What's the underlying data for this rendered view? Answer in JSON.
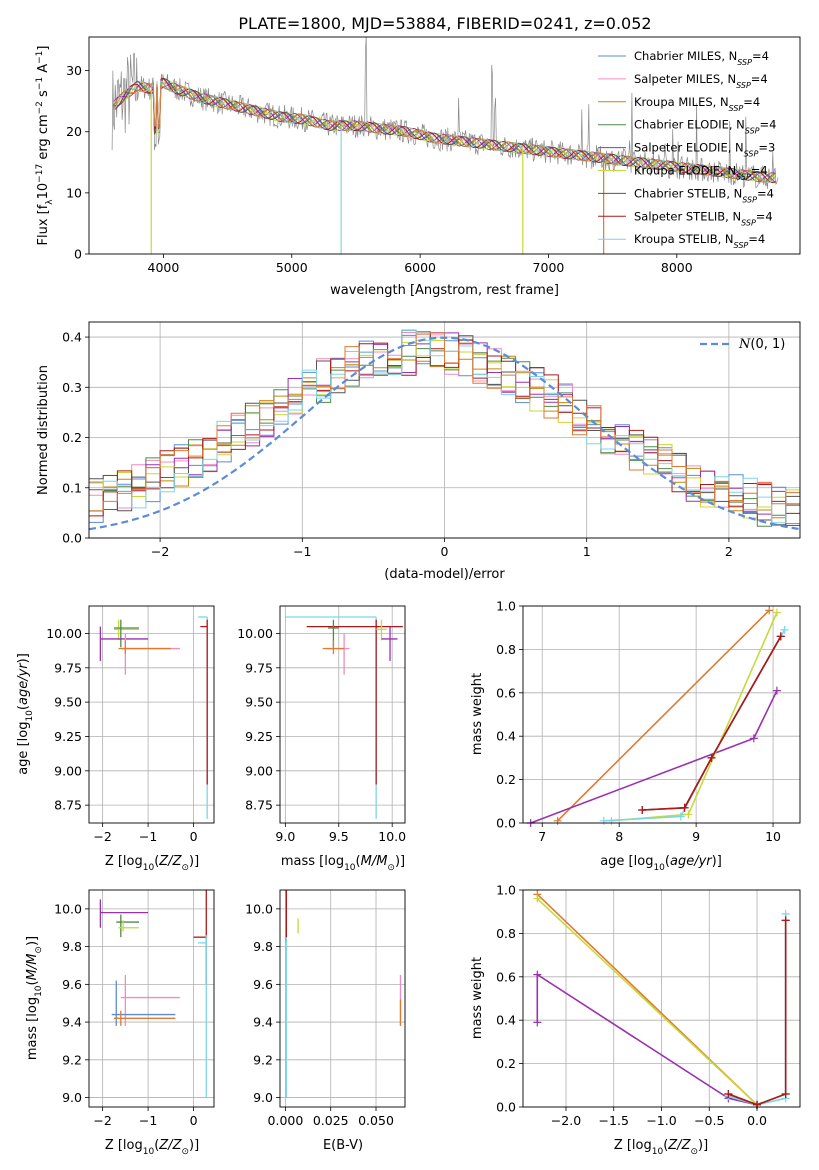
{
  "figure_title": "PLATE=1800, MJD=53884, FIBERID=0241, z=0.052",
  "colors": {
    "chabrier_miles": "#5b8bd9",
    "salpeter_miles": "#f08cc0",
    "kroupa_miles": "#c8860a",
    "chabrier_elodie": "#4d8a4d",
    "salpeter_elodie": "#9b30b0",
    "kroupa_elodie": "#c8d83a",
    "chabrier_stelib": "#555555",
    "salpeter_stelib": "#b01818",
    "kroupa_stelib": "#7dd6e6",
    "orange": "#e07a30",
    "gaussian": "#5b8bd9"
  },
  "chart_data": [
    {
      "id": "spectrum",
      "type": "line",
      "title": "PLATE=1800, MJD=53884, FIBERID=0241, z=0.052",
      "xlabel": "wavelength [Angstrom, rest frame]",
      "ylabel_parts": [
        "Flux [f",
        "λ",
        "10",
        "−17",
        " erg cm",
        "−2",
        " s",
        "−1",
        " A",
        "−1",
        "]"
      ],
      "xlim": [
        3420,
        8960
      ],
      "ylim": [
        0,
        35.5
      ],
      "xticks": [
        4000,
        5000,
        6000,
        7000,
        8000
      ],
      "yticks": [
        0,
        10,
        20,
        30
      ],
      "legend_position": "top-right",
      "legend": [
        {
          "label": "Chabrier MILES, N",
          "n": "4",
          "color": "#5b8bd9"
        },
        {
          "label": "Salpeter MILES, N",
          "n": "4",
          "color": "#f08cc0"
        },
        {
          "label": "Kroupa MILES, N",
          "n": "4",
          "color": "#c8860a"
        },
        {
          "label": "Chabrier ELODIE, N",
          "n": "4",
          "color": "#4d8a4d"
        },
        {
          "label": "Salpeter ELODIE, N",
          "n": "3",
          "color": "#9b30b0"
        },
        {
          "label": "Kroupa ELODIE, N",
          "n": "4",
          "color": "#c8d83a"
        },
        {
          "label": "Chabrier STELIB, N",
          "n": "4",
          "color": "#555555"
        },
        {
          "label": "Salpeter STELIB, N",
          "n": "4",
          "color": "#b01818"
        },
        {
          "label": "Kroupa STELIB, N",
          "n": "4",
          "color": "#7dd6e6"
        }
      ],
      "legend_sub": "SSP",
      "continuum": [
        [
          3600,
          24
        ],
        [
          3700,
          26
        ],
        [
          3800,
          27.5
        ],
        [
          3900,
          27
        ],
        [
          4000,
          28
        ],
        [
          4100,
          27
        ],
        [
          4300,
          25.5
        ],
        [
          4500,
          24.5
        ],
        [
          4700,
          23.5
        ],
        [
          4900,
          22.5
        ],
        [
          5100,
          22
        ],
        [
          5300,
          21
        ],
        [
          5500,
          21
        ],
        [
          5700,
          20.5
        ],
        [
          5900,
          20
        ],
        [
          6100,
          19
        ],
        [
          6300,
          18.5
        ],
        [
          6500,
          18
        ],
        [
          6700,
          17.5
        ],
        [
          6900,
          17
        ],
        [
          7100,
          16.5
        ],
        [
          7300,
          16
        ],
        [
          7500,
          15.5
        ],
        [
          7700,
          15
        ],
        [
          7900,
          14.5
        ],
        [
          8100,
          14
        ],
        [
          8300,
          13.5
        ],
        [
          8500,
          13
        ],
        [
          8700,
          12.5
        ]
      ],
      "model_drops": [
        {
          "x": 3905,
          "color": "#c8d83a"
        },
        {
          "x": 5385,
          "color": "#7dd6e6"
        },
        {
          "x": 6800,
          "color": "#c8d83a"
        },
        {
          "x": 7430,
          "color": "#e07a30"
        }
      ]
    },
    {
      "id": "residuals",
      "type": "line",
      "xlabel": "(data-model)/error",
      "ylabel": "Normed distribution",
      "xlim": [
        -2.5,
        2.5
      ],
      "ylim": [
        0,
        0.43
      ],
      "xticks": [
        -2,
        -1,
        0,
        1,
        2
      ],
      "yticks": [
        0.0,
        0.1,
        0.2,
        0.3,
        0.4
      ],
      "grid": true,
      "gaussian_label": "N(0, 1)",
      "legend_position": "top-right",
      "histogram_bins": 50,
      "series_colors": [
        "#5b8bd9",
        "#f08cc0",
        "#c8860a",
        "#4d8a4d",
        "#9b30b0",
        "#c8d83a",
        "#555555",
        "#b01818",
        "#7dd6e6",
        "#e07a30"
      ]
    },
    {
      "id": "age_vs_Z",
      "type": "scatter",
      "xlabel": "Z [log10(Z/Z⊙)]",
      "ylabel": "age  [log10(age/yr)]",
      "xlim": [
        -2.3,
        0.45
      ],
      "ylim": [
        8.62,
        10.2
      ],
      "xticks": [
        -2,
        -1,
        0
      ],
      "yticks": [
        8.75,
        9.0,
        9.25,
        9.5,
        9.75,
        10.0
      ],
      "grid": true,
      "errorbars": [
        {
          "x": 0.3,
          "xlo": 0.1,
          "xhi": 0.3,
          "y": 10.12,
          "ylo": 8.65,
          "yhi": 10.12,
          "color": "#7dd6e6"
        },
        {
          "x": 0.3,
          "xlo": 0.15,
          "xhi": 0.3,
          "y": 10.05,
          "ylo": 8.9,
          "yhi": 10.1,
          "color": "#b01818"
        },
        {
          "x": -1.65,
          "xlo": -1.75,
          "xhi": -1.2,
          "y": 10.03,
          "ylo": 9.95,
          "yhi": 10.1,
          "color": "#c8d83a"
        },
        {
          "x": -1.6,
          "xlo": -1.75,
          "xhi": -1.2,
          "y": 10.04,
          "ylo": 9.9,
          "yhi": 10.1,
          "color": "#4d8a4d"
        },
        {
          "x": -2.05,
          "xlo": -2.05,
          "xhi": -1.0,
          "y": 9.96,
          "ylo": 9.8,
          "yhi": 10.05,
          "color": "#9b30b0"
        },
        {
          "x": -1.5,
          "xlo": -1.6,
          "xhi": -0.3,
          "y": 9.89,
          "ylo": 9.7,
          "yhi": 10.0,
          "color": "#f08cc0"
        },
        {
          "x": -1.5,
          "xlo": -1.65,
          "xhi": -0.5,
          "y": 9.89,
          "ylo": 9.85,
          "yhi": 9.95,
          "color": "#e07a30"
        }
      ]
    },
    {
      "id": "age_vs_mass",
      "type": "scatter",
      "xlabel": "mass [log10(M/M⊙)]",
      "xlim": [
        8.95,
        10.12
      ],
      "ylim": [
        8.62,
        10.2
      ],
      "xticks": [
        9.0,
        9.5,
        10.0
      ],
      "yticks": [
        8.75,
        9.0,
        9.25,
        9.5,
        9.75,
        10.0
      ],
      "grid": true,
      "errorbars": [
        {
          "x": 9.85,
          "xlo": 9.0,
          "xhi": 9.85,
          "y": 10.12,
          "ylo": 8.65,
          "yhi": 10.12,
          "color": "#7dd6e6"
        },
        {
          "x": 9.85,
          "xlo": 9.2,
          "xhi": 10.1,
          "y": 10.05,
          "ylo": 8.9,
          "yhi": 10.1,
          "color": "#b01818"
        },
        {
          "x": 9.9,
          "xlo": 9.85,
          "xhi": 9.95,
          "y": 10.03,
          "ylo": 9.95,
          "yhi": 10.1,
          "color": "#c8d83a"
        },
        {
          "x": 9.45,
          "xlo": 9.4,
          "xhi": 9.5,
          "y": 10.04,
          "ylo": 9.9,
          "yhi": 10.1,
          "color": "#4d8a4d"
        },
        {
          "x": 9.98,
          "xlo": 9.9,
          "xhi": 10.05,
          "y": 9.96,
          "ylo": 9.8,
          "yhi": 10.05,
          "color": "#9b30b0"
        },
        {
          "x": 9.55,
          "xlo": 9.5,
          "xhi": 9.6,
          "y": 9.89,
          "ylo": 9.7,
          "yhi": 10.0,
          "color": "#f08cc0"
        },
        {
          "x": 9.45,
          "xlo": 9.35,
          "xhi": 9.55,
          "y": 9.89,
          "ylo": 9.85,
          "yhi": 9.95,
          "color": "#e07a30"
        }
      ]
    },
    {
      "id": "weight_vs_age",
      "type": "line",
      "xlabel": "age  [log10(age/yr)]",
      "ylabel": "mass weight",
      "xlim": [
        6.75,
        10.35
      ],
      "ylim": [
        0,
        1.0
      ],
      "xticks": [
        7,
        8,
        9,
        10
      ],
      "yticks": [
        0.0,
        0.2,
        0.4,
        0.6,
        0.8,
        1.0
      ],
      "grid": true,
      "series": [
        {
          "color": "#e07a30",
          "x": [
            7.2,
            9.95
          ],
          "y": [
            0.01,
            0.98
          ]
        },
        {
          "color": "#9b30b0",
          "x": [
            6.85,
            9.75,
            10.05
          ],
          "y": [
            0.0,
            0.39,
            0.61
          ]
        },
        {
          "color": "#c8d83a",
          "x": [
            7.9,
            8.9,
            10.05
          ],
          "y": [
            0.01,
            0.04,
            0.97
          ]
        },
        {
          "color": "#7dd6e6",
          "x": [
            7.8,
            8.8,
            9.2,
            10.15
          ],
          "y": [
            0.01,
            0.03,
            0.3,
            0.89
          ]
        },
        {
          "color": "#555555",
          "x": [
            8.3,
            8.85,
            9.2,
            10.1
          ],
          "y": [
            0.06,
            0.07,
            0.3,
            0.86
          ]
        },
        {
          "color": "#b01818",
          "x": [
            8.3,
            8.85,
            9.2,
            10.1
          ],
          "y": [
            0.06,
            0.07,
            0.3,
            0.86
          ]
        }
      ]
    },
    {
      "id": "mass_vs_Z",
      "type": "scatter",
      "xlabel": "Z [log10(Z/Z⊙)]",
      "ylabel": "mass [log10(M/M⊙)]",
      "xlim": [
        -2.3,
        0.45
      ],
      "ylim": [
        8.95,
        10.1
      ],
      "xticks": [
        -2,
        -1,
        0
      ],
      "yticks": [
        9.0,
        9.2,
        9.4,
        9.6,
        9.8,
        10.0
      ],
      "grid": true,
      "errorbars": [
        {
          "x": -2.05,
          "xlo": -2.05,
          "xhi": -1.0,
          "y": 9.98,
          "ylo": 9.9,
          "yhi": 10.05,
          "color": "#9b30b0"
        },
        {
          "x": -1.6,
          "xlo": -1.7,
          "xhi": -1.2,
          "y": 9.93,
          "ylo": 9.85,
          "yhi": 9.97,
          "color": "#4d8a4d"
        },
        {
          "x": -1.55,
          "xlo": -1.65,
          "xhi": -1.2,
          "y": 9.9,
          "ylo": 9.88,
          "yhi": 9.94,
          "color": "#c8d83a"
        },
        {
          "x": 0.28,
          "xlo": 0.0,
          "xhi": 0.3,
          "y": 9.85,
          "ylo": 9.6,
          "yhi": 10.1,
          "color": "#b01818"
        },
        {
          "x": 0.28,
          "xlo": 0.1,
          "xhi": 0.3,
          "y": 9.82,
          "ylo": 9.0,
          "yhi": 9.86,
          "color": "#7dd6e6"
        },
        {
          "x": -1.5,
          "xlo": -1.6,
          "xhi": -0.3,
          "y": 9.53,
          "ylo": 9.38,
          "yhi": 9.65,
          "color": "#f08cc0"
        },
        {
          "x": -1.7,
          "xlo": -1.8,
          "xhi": -0.4,
          "y": 9.44,
          "ylo": 9.38,
          "yhi": 9.62,
          "color": "#5b8bd9"
        },
        {
          "x": -1.6,
          "xlo": -1.75,
          "xhi": -0.4,
          "y": 9.42,
          "ylo": 9.38,
          "yhi": 9.46,
          "color": "#e07a30"
        }
      ]
    },
    {
      "id": "mass_vs_EBV",
      "type": "scatter",
      "xlabel": "E(B-V)",
      "xlim": [
        -0.003,
        0.066
      ],
      "ylim": [
        8.95,
        10.1
      ],
      "xticks": [
        0.0,
        0.025,
        0.05
      ],
      "xticklabels": [
        "0.000",
        "0.025",
        "0.050"
      ],
      "yticks": [
        9.0,
        9.2,
        9.4,
        9.6,
        9.8,
        10.0
      ],
      "grid": true,
      "errorbars": [
        {
          "x": 0.0005,
          "y": 9.95,
          "ylo": 9.82,
          "yhi": 10.1,
          "color": "#b01818"
        },
        {
          "x": 0.0005,
          "y": 9.5,
          "ylo": 9.0,
          "yhi": 9.85,
          "color": "#7dd6e6"
        },
        {
          "x": 0.007,
          "y": 9.9,
          "ylo": 9.87,
          "yhi": 9.95,
          "color": "#c8d83a"
        },
        {
          "x": 0.0635,
          "y": 9.5,
          "ylo": 9.38,
          "yhi": 9.65,
          "color": "#f08cc0"
        },
        {
          "x": 0.0635,
          "y": 9.45,
          "ylo": 9.38,
          "yhi": 9.52,
          "color": "#e07a30"
        }
      ]
    },
    {
      "id": "weight_vs_Z",
      "type": "line",
      "xlabel": "Z [log10(Z/Z⊙)]",
      "ylabel": "mass weight",
      "xlim": [
        -2.45,
        0.45
      ],
      "ylim": [
        0,
        1.0
      ],
      "xticks": [
        -2.0,
        -1.5,
        -1.0,
        -0.5,
        0.0
      ],
      "xticklabels": [
        "−2.0",
        "−1.5",
        "−1.0",
        "−0.5",
        "0.0"
      ],
      "yticks": [
        0.0,
        0.2,
        0.4,
        0.6,
        0.8,
        1.0
      ],
      "grid": true,
      "series": [
        {
          "color": "#e07a30",
          "x": [
            -2.3,
            0.0
          ],
          "y": [
            0.98,
            0.01
          ]
        },
        {
          "color": "#c8d83a",
          "x": [
            -2.3,
            0.0
          ],
          "y": [
            0.96,
            0.01
          ]
        },
        {
          "color": "#9b30b0",
          "x": [
            -2.3,
            -2.3,
            -0.3,
            0.0
          ],
          "y": [
            0.39,
            0.61,
            0.04,
            0.01
          ]
        },
        {
          "color": "#7dd6e6",
          "x": [
            -0.3,
            0.0,
            0.3,
            0.3
          ],
          "y": [
            0.05,
            0.01,
            0.04,
            0.89
          ]
        },
        {
          "color": "#555555",
          "x": [
            -0.3,
            0.0,
            0.3,
            0.3
          ],
          "y": [
            0.06,
            0.01,
            0.06,
            0.86
          ]
        },
        {
          "color": "#b01818",
          "x": [
            -0.3,
            0.0,
            0.3,
            0.3
          ],
          "y": [
            0.06,
            0.01,
            0.06,
            0.86
          ]
        }
      ]
    }
  ]
}
